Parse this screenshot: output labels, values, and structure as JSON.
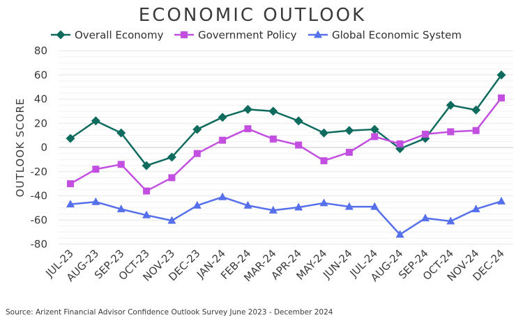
{
  "chart_data": {
    "type": "line",
    "title": "ECONOMIC OUTLOOK",
    "xlabel": "",
    "ylabel": "OUTLOOK SCORE",
    "ylim": [
      -80,
      80
    ],
    "yticks": [
      -80,
      -60,
      -40,
      -20,
      0,
      20,
      40,
      60,
      80
    ],
    "categories": [
      "JUL-23",
      "AUG-23",
      "SEP-23",
      "OCT-23",
      "NOV-23",
      "DEC-23",
      "JAN-24",
      "FEB-24",
      "MAR-24",
      "APR-24",
      "MAY-24",
      "JUN-24",
      "JUL-24",
      "AUG-24",
      "SEP-24",
      "OCT-24",
      "NOV-24",
      "DEC-24"
    ],
    "series": [
      {
        "name": "Overall Economy",
        "color": "#0e6b5e",
        "marker": "diamond",
        "values": [
          7.5,
          22,
          12,
          -15,
          -8,
          15,
          25,
          31.5,
          30,
          22,
          12,
          14,
          15,
          -1,
          7.5,
          35,
          31,
          60
        ]
      },
      {
        "name": "Government Policy",
        "color": "#c24fe0",
        "marker": "square",
        "values": [
          -30,
          -18,
          -14,
          -36,
          -25,
          -5,
          6,
          15.5,
          7,
          2,
          -11,
          -4,
          9,
          3,
          11,
          13,
          14,
          41
        ]
      },
      {
        "name": "Global Economic System",
        "color": "#5570ea",
        "marker": "triangle",
        "values": [
          -47,
          -45,
          -51,
          -56,
          -60.5,
          -48,
          -41,
          -48,
          -52,
          -49.5,
          -46,
          -49,
          -49,
          -72,
          -58.5,
          -61,
          -51,
          -44.5
        ]
      }
    ],
    "grid": true,
    "legend": "top",
    "source": "Source: Arizent Financial Advisor Confidence Outlook Survey June 2023 - December 2024"
  }
}
